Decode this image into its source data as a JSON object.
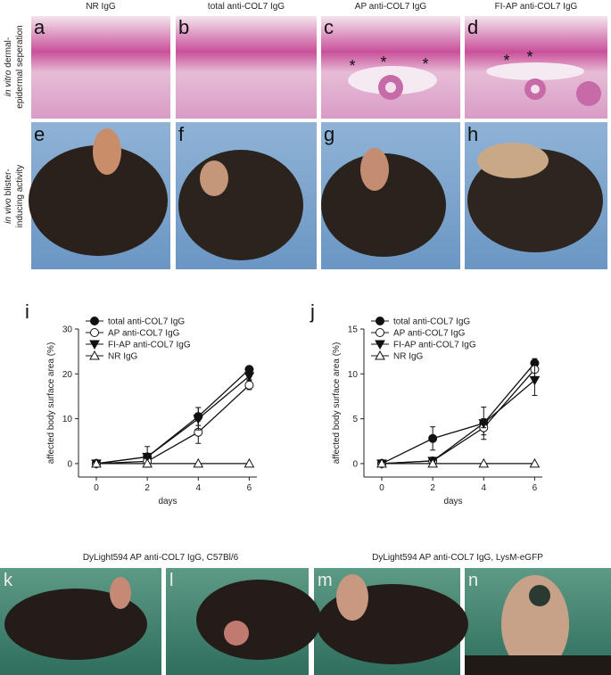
{
  "column_headers": [
    "NR IgG",
    "total anti-COL7 IgG",
    "AP anti-COL7 IgG",
    "FI-AP anti-COL7 IgG"
  ],
  "row_labels": [
    {
      "italic": "in vitro",
      "line1": "dermal-",
      "line2": "epidermal seperation"
    },
    {
      "italic": "in vivo",
      "line1": "blister-",
      "line2": "inducing activity"
    }
  ],
  "panel_letters": [
    "a",
    "b",
    "c",
    "d",
    "e",
    "f",
    "g",
    "h"
  ],
  "asterisk": "*",
  "chart_data": [
    {
      "type": "line",
      "letter": "i",
      "x_label": "days",
      "y_label": "affected body surface area (%)",
      "x": [
        0,
        2,
        4,
        6
      ],
      "xlim": [
        -0.7,
        6.3
      ],
      "xticks": [
        0,
        2,
        4,
        6
      ],
      "ylim": [
        -3,
        30
      ],
      "yticks": [
        0,
        10,
        20,
        30
      ],
      "legend": "upper left",
      "series": [
        {
          "name": "total anti-COL7 IgG",
          "color": "#111",
          "marker": "circle-filled",
          "values": [
            0,
            1.5,
            10.5,
            21
          ],
          "errors": [
            0.3,
            0.5,
            2,
            0.5
          ]
        },
        {
          "name": "AP anti-COL7 IgG",
          "color": "#111",
          "marker": "circle-open",
          "values": [
            0,
            0.5,
            7,
            17.5
          ],
          "errors": [
            0.3,
            0.3,
            2.5,
            1
          ]
        },
        {
          "name": "FI-AP anti-COL7 IgG",
          "color": "#111",
          "marker": "triangle-down-filled",
          "values": [
            0,
            1.5,
            10,
            19.5
          ],
          "errors": [
            0.3,
            2.3,
            2.5,
            0.8
          ]
        },
        {
          "name": "NR IgG",
          "color": "#111",
          "marker": "triangle-up-open",
          "values": [
            0,
            0,
            0,
            0
          ],
          "errors": [
            0,
            0,
            0,
            0
          ]
        }
      ]
    },
    {
      "type": "line",
      "letter": "j",
      "x_label": "days",
      "y_label": "affected body surface area (%)",
      "x": [
        0,
        2,
        4,
        6
      ],
      "xlim": [
        -0.7,
        6.3
      ],
      "xticks": [
        0,
        2,
        4,
        6
      ],
      "ylim": [
        -1.5,
        15
      ],
      "yticks": [
        0,
        5,
        10,
        15
      ],
      "legend": "upper left",
      "series": [
        {
          "name": "total anti-COL7 IgG",
          "color": "#111",
          "marker": "circle-filled",
          "values": [
            0,
            2.8,
            4.5,
            11.2
          ],
          "errors": [
            0.2,
            1.3,
            1.8,
            0.5
          ]
        },
        {
          "name": "AP anti-COL7 IgG",
          "color": "#111",
          "marker": "circle-open",
          "values": [
            0,
            0.3,
            4,
            10.5
          ],
          "errors": [
            0.1,
            0.3,
            0.8,
            0.8
          ]
        },
        {
          "name": "FI-AP anti-COL7 IgG",
          "color": "#111",
          "marker": "triangle-down-filled",
          "values": [
            0,
            0.3,
            4.5,
            9.3
          ],
          "errors": [
            0.1,
            0.3,
            0.5,
            1.7
          ]
        },
        {
          "name": "NR IgG",
          "color": "#111",
          "marker": "triangle-up-open",
          "values": [
            0,
            0,
            0,
            0
          ],
          "errors": [
            0,
            0,
            0,
            0
          ]
        }
      ]
    }
  ],
  "bottom_titles": [
    "DyLight594 AP anti-COL7 IgG, C57Bl/6",
    "DyLight594 AP anti-COL7 IgG, LysM-eGFP"
  ],
  "bottom_letters": [
    "k",
    "l",
    "m",
    "n"
  ]
}
